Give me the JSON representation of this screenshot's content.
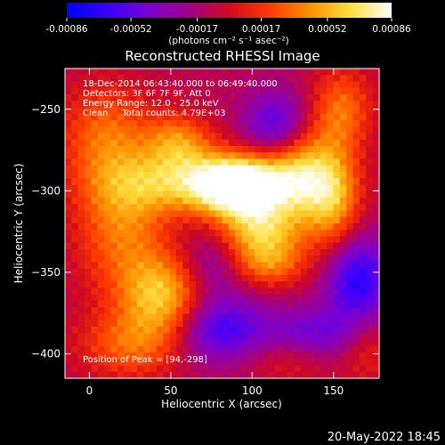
{
  "chart_data": {
    "type": "heatmap",
    "title": "Reconstructed RHESSI Image",
    "xlabel": "Heliocentric X (arcsec)",
    "ylabel": "Heliocentric Y (arcsec)",
    "xlim": [
      -15,
      178
    ],
    "ylim": [
      -415,
      -225
    ],
    "xticks": [
      0,
      50,
      100,
      150
    ],
    "yticks": [
      -250,
      -300,
      -350,
      -400
    ],
    "colorbar": {
      "range": [
        -0.00086,
        0.00086
      ],
      "ticks": [
        -0.00086,
        -0.00052,
        -0.00017,
        0.00017,
        0.00052,
        0.00086
      ],
      "tick_labels": [
        "-0.00086",
        "-0.00052",
        "-0.00017",
        "0.00017",
        "0.00052",
        "0.00086"
      ],
      "unit_text": "(photons cm⁻² s⁻¹ asec⁻²)",
      "colormap": [
        "#0000ff",
        "#3a00ff",
        "#7a00d0",
        "#a0008a",
        "#d20a1e",
        "#ff3c00",
        "#ff9200",
        "#ffe040",
        "#ffffff"
      ]
    },
    "annotations": [
      "18-Dec-2014 06:43:40.000 to 06:49:40.000",
      "Detectors: 3F 6F 7F 9F, Att 0",
      "Energy Range: 12.0 - 25.0 keV",
      "Clean     Total counts: 4.79E+03"
    ],
    "peak_label": "Position of Peak = [94,-298]",
    "peak_position": [
      94,
      -298
    ],
    "sources": [
      {
        "x": 94,
        "y": -298,
        "amp": 1.0,
        "sx": 18,
        "sy": 13
      },
      {
        "x": 70,
        "y": -295,
        "amp": 0.8,
        "sx": 35,
        "sy": 13
      },
      {
        "x": 55,
        "y": -270,
        "amp": 0.55,
        "sx": 14,
        "sy": 12
      },
      {
        "x": 130,
        "y": -290,
        "amp": 0.7,
        "sx": 15,
        "sy": 20
      },
      {
        "x": 150,
        "y": -305,
        "amp": 0.65,
        "sx": 12,
        "sy": 22
      },
      {
        "x": 155,
        "y": -250,
        "amp": 0.5,
        "sx": 13,
        "sy": 18
      },
      {
        "x": 105,
        "y": -325,
        "amp": 0.72,
        "sx": 18,
        "sy": 12
      },
      {
        "x": 110,
        "y": -345,
        "amp": 0.5,
        "sx": 16,
        "sy": 10
      },
      {
        "x": 10,
        "y": -265,
        "amp": 0.45,
        "sx": 20,
        "sy": 22
      },
      {
        "x": 20,
        "y": -320,
        "amp": 0.55,
        "sx": 20,
        "sy": 30
      },
      {
        "x": 45,
        "y": -365,
        "amp": 0.75,
        "sx": 18,
        "sy": 18
      },
      {
        "x": 25,
        "y": -395,
        "amp": 0.45,
        "sx": 22,
        "sy": 14
      },
      {
        "x": 125,
        "y": -400,
        "amp": 0.35,
        "sx": 20,
        "sy": 12
      },
      {
        "x": 170,
        "y": -395,
        "amp": 0.3,
        "sx": 12,
        "sy": 15
      }
    ],
    "negative_regions": [
      {
        "x": 115,
        "y": -260,
        "amp": -0.55,
        "sx": 14,
        "sy": 15
      },
      {
        "x": 75,
        "y": -345,
        "amp": -0.3,
        "sx": 14,
        "sy": 16
      },
      {
        "x": 80,
        "y": -385,
        "amp": -0.6,
        "sx": 20,
        "sy": 14
      },
      {
        "x": 165,
        "y": -355,
        "amp": -0.7,
        "sx": 14,
        "sy": 20
      },
      {
        "x": 135,
        "y": -390,
        "amp": -0.55,
        "sx": 22,
        "sy": 12
      }
    ]
  },
  "footer": {
    "timestamp": "20-May-2022 18:45"
  }
}
